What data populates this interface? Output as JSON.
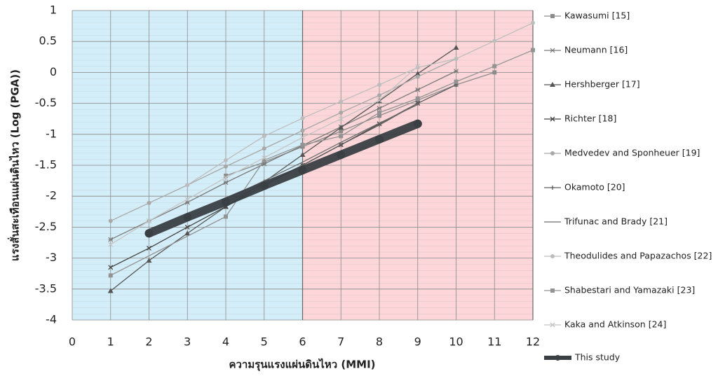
{
  "chart_data": {
    "type": "line",
    "x_label": "ความรุนแรงแผ่นดินไหว (MMI)",
    "y_label": "แรงสั่นสะเทือนแผ่นดินไหว (Log (PGA))",
    "xlim": [
      0,
      12
    ],
    "xticks": [
      0,
      1,
      2,
      3,
      4,
      5,
      6,
      7,
      8,
      9,
      10,
      11,
      12
    ],
    "ylim": [
      -4,
      1
    ],
    "yticks": [
      -4,
      -3.5,
      -3,
      -2.5,
      -2,
      -1.5,
      -1,
      -0.5,
      0,
      0.5,
      1
    ],
    "grid": true,
    "legend": "right",
    "shaded_regions": [
      {
        "from": 0,
        "to": 6,
        "color": "#d4eef9"
      },
      {
        "from": 6,
        "to": 12,
        "color": "#fcd6d8"
      }
    ],
    "series": [
      {
        "name": "Kawasumi [15]",
        "color": "#8c8c8c",
        "marker": "square",
        "width": 1.3,
        "x": [
          4,
          5,
          6,
          7,
          8,
          9,
          10,
          11
        ],
        "values": [
          -1.67,
          -1.45,
          -1.2,
          -0.95,
          -0.7,
          -0.45,
          -0.2,
          0
        ]
      },
      {
        "name": "Neumann [16]",
        "color": "#7a7a7a",
        "marker": "asterisk",
        "width": 1.3,
        "x": [
          1,
          2,
          3,
          4,
          5,
          6,
          7,
          8,
          9,
          10
        ],
        "values": [
          -2.7,
          -2.4,
          -2.1,
          -1.78,
          -1.48,
          -1.18,
          -0.88,
          -0.58,
          -0.28,
          0.02
        ]
      },
      {
        "name": "Hershberger [17]",
        "color": "#555555",
        "marker": "triangle",
        "width": 1.3,
        "x": [
          1,
          2,
          3,
          4,
          5,
          6,
          7,
          8,
          9,
          10
        ],
        "values": [
          -3.53,
          -3.04,
          -2.6,
          -2.17,
          -1.77,
          -1.33,
          -0.89,
          -0.46,
          -0.02,
          0.4
        ]
      },
      {
        "name": "Richter [18]",
        "color": "#444444",
        "marker": "x",
        "width": 1.3,
        "x": [
          1,
          2,
          3,
          4,
          5,
          6,
          7,
          8,
          9
        ],
        "values": [
          -3.15,
          -2.84,
          -2.5,
          -2.17,
          -1.83,
          -1.5,
          -1.17,
          -0.83,
          -0.5
        ]
      },
      {
        "name": "Medvedev and Sponheuer [19]",
        "color": "#a8a8a8",
        "marker": "circle",
        "width": 1.3,
        "x": [
          1,
          2,
          3,
          4,
          5,
          6,
          7,
          8,
          9,
          10
        ],
        "values": [
          -2.4,
          -2.11,
          -1.82,
          -1.52,
          -1.23,
          -0.94,
          -0.65,
          -0.37,
          -0.07,
          0.22
        ]
      },
      {
        "name": "Okamoto [20]",
        "color": "#5e5e5e",
        "marker": "plus",
        "width": 1.3,
        "x": [
          4,
          5,
          6,
          7,
          8,
          9,
          10
        ],
        "values": [
          -2.1,
          -1.8,
          -1.5,
          -1.17,
          -0.85,
          -0.5,
          -0.2
        ]
      },
      {
        "name": "Trifunac and Brady [21]",
        "color": "#6e6e6e",
        "marker": "none",
        "width": 1.3,
        "x": [
          4,
          5,
          6,
          7,
          8,
          9
        ],
        "values": [
          -2.05,
          -1.75,
          -1.45,
          -1.13,
          -0.82,
          -0.52
        ]
      },
      {
        "name": "Theodulides and Papazachos [22]",
        "color": "#bdbdbd",
        "marker": "circle",
        "width": 1.3,
        "x": [
          3,
          4,
          5,
          6,
          7,
          8,
          9,
          10,
          11,
          12
        ],
        "values": [
          -1.82,
          -1.42,
          -1.03,
          -0.74,
          -0.47,
          -0.2,
          0.08,
          0.22,
          0.51,
          0.8
        ]
      },
      {
        "name": "Shabestari and Yamazaki [23]",
        "color": "#939393",
        "marker": "square",
        "width": 1.3,
        "x": [
          1,
          4,
          5,
          6,
          7,
          8,
          9,
          10,
          11,
          12
        ],
        "values": [
          -3.28,
          -2.33,
          -1.42,
          -1.17,
          -1.03,
          -0.65,
          -0.42,
          -0.15,
          0.1,
          0.36
        ]
      },
      {
        "name": "Kaka and Atkinson [24]",
        "color": "#c4c4c4",
        "marker": "x",
        "width": 1.3,
        "x": [
          1,
          2,
          3,
          4,
          5,
          6,
          7,
          8,
          9
        ],
        "values": [
          -2.78,
          -2.4,
          -2.05,
          -1.7,
          -1.38,
          -1.05,
          -0.75,
          -0.45,
          0.1
        ]
      },
      {
        "name": "This study",
        "color": "#3a3f44",
        "marker": "circle",
        "width": 12,
        "x": [
          2,
          3,
          4,
          5,
          6,
          7,
          8,
          9
        ],
        "values": [
          -2.6,
          -2.34,
          -2.09,
          -1.83,
          -1.58,
          -1.33,
          -1.08,
          -0.83
        ]
      }
    ]
  }
}
